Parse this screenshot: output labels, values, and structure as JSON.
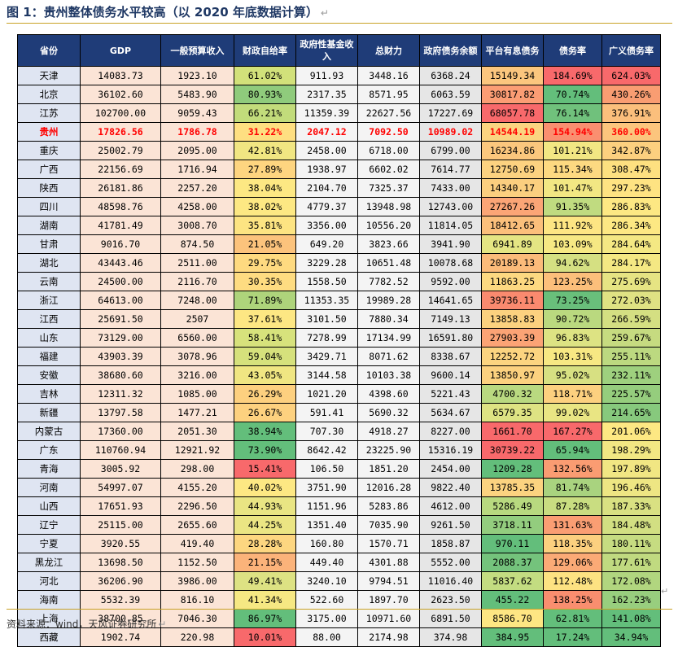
{
  "title": "图 1：贵州整体债务水平较高（以 2020 年底数据计算）",
  "title_mark": "↵",
  "source": "资料来源：wind，天风证券研究所",
  "source_mark": "↵",
  "end_mark": "↵",
  "headers": [
    "省份",
    "GDP",
    "一般预算收入",
    "财政自给率",
    "政府性基金收入",
    "总财力",
    "政府债务余额",
    "平台有息债务",
    "债务率",
    "广义债务率"
  ],
  "rows": [
    {
      "province": "天津",
      "gdp": "14083.73",
      "budget": "1923.10",
      "self": "61.02%",
      "fund": "911.93",
      "total": "3448.16",
      "gov_debt": "6368.24",
      "platform": "15149.34",
      "debt_ratio": "184.69%",
      "broad": "624.03%",
      "self_color": "#d2e17a",
      "platform_color": "#fbc67e",
      "debt_color": "#f8696b",
      "broad_color": "#f8696b"
    },
    {
      "province": "北京",
      "gdp": "36102.60",
      "budget": "5483.90",
      "self": "80.93%",
      "fund": "2317.35",
      "total": "8571.95",
      "gov_debt": "6063.59",
      "platform": "30817.82",
      "debt_ratio": "70.74%",
      "broad": "430.26%",
      "self_color": "#8fcb7c",
      "platform_color": "#fb9d74",
      "debt_color": "#63be7b",
      "broad_color": "#f99d72"
    },
    {
      "province": "江苏",
      "gdp": "102700.00",
      "budget": "9059.43",
      "self": "66.21%",
      "fund": "11359.39",
      "total": "22627.56",
      "gov_debt": "17227.69",
      "platform": "68057.78",
      "debt_ratio": "76.14%",
      "broad": "376.91%",
      "self_color": "#c2dc7b",
      "platform_color": "#f8696b",
      "debt_color": "#70c17c",
      "broad_color": "#fbbf7c"
    },
    {
      "province": "贵州",
      "gdp": "17826.56",
      "budget": "1786.78",
      "self": "31.22%",
      "fund": "2047.12",
      "total": "7092.50",
      "gov_debt": "10989.02",
      "platform": "14544.19",
      "debt_ratio": "154.94%",
      "broad": "360.00%",
      "self_color": "#fedf81",
      "platform_color": "#fbd480",
      "debt_color": "#fa8f70",
      "broad_color": "#fcc57d",
      "highlight": true
    },
    {
      "province": "重庆",
      "gdp": "25002.79",
      "budget": "2095.00",
      "self": "42.81%",
      "fund": "2458.00",
      "total": "6718.00",
      "gov_debt": "6799.00",
      "platform": "16234.86",
      "debt_ratio": "101.21%",
      "broad": "342.87%",
      "self_color": "#f1e682",
      "platform_color": "#fbc77d",
      "debt_color": "#f2e783",
      "broad_color": "#fcd07f"
    },
    {
      "province": "广西",
      "gdp": "22156.69",
      "budget": "1716.94",
      "self": "27.89%",
      "fund": "1938.97",
      "total": "6602.02",
      "gov_debt": "7614.77",
      "platform": "12750.69",
      "debt_ratio": "115.34%",
      "broad": "308.47%",
      "self_color": "#fed580",
      "platform_color": "#fcd280",
      "debt_color": "#fdd981",
      "broad_color": "#fde080"
    },
    {
      "province": "陕西",
      "gdp": "26181.86",
      "budget": "2257.20",
      "self": "38.04%",
      "fund": "2104.70",
      "total": "7325.37",
      "gov_debt": "7433.00",
      "platform": "14340.17",
      "debt_ratio": "101.47%",
      "broad": "297.23%",
      "self_color": "#fde883",
      "platform_color": "#fbcf7f",
      "debt_color": "#f2e783",
      "broad_color": "#fee382"
    },
    {
      "province": "四川",
      "gdp": "48598.76",
      "budget": "4258.00",
      "self": "38.02%",
      "fund": "4779.37",
      "total": "13948.98",
      "gov_debt": "12743.00",
      "platform": "27267.26",
      "debt_ratio": "91.35%",
      "broad": "286.83%",
      "self_color": "#fde883",
      "platform_color": "#fba576",
      "debt_color": "#c0db80",
      "broad_color": "#fde883"
    },
    {
      "province": "湖南",
      "gdp": "41781.49",
      "budget": "3008.70",
      "self": "35.81%",
      "fund": "3356.00",
      "total": "10556.20",
      "gov_debt": "11814.05",
      "platform": "18412.65",
      "debt_ratio": "111.92%",
      "broad": "286.34%",
      "self_color": "#fde482",
      "platform_color": "#fbbf7b",
      "debt_color": "#fde583",
      "broad_color": "#fde883"
    },
    {
      "province": "甘肃",
      "gdp": "9016.70",
      "budget": "874.50",
      "self": "21.05%",
      "fund": "649.20",
      "total": "3823.66",
      "gov_debt": "3941.90",
      "platform": "6941.89",
      "debt_ratio": "103.09%",
      "broad": "284.64%",
      "self_color": "#fcc37c",
      "platform_color": "#e4e583",
      "debt_color": "#f6e883",
      "broad_color": "#f4e883"
    },
    {
      "province": "湖北",
      "gdp": "43443.46",
      "budget": "2511.00",
      "self": "29.75%",
      "fund": "3229.28",
      "total": "10651.48",
      "gov_debt": "10078.68",
      "platform": "20189.13",
      "debt_ratio": "94.62%",
      "broad": "284.17%",
      "self_color": "#feda80",
      "platform_color": "#fbbb7a",
      "debt_color": "#d5e082",
      "broad_color": "#f4e883"
    },
    {
      "province": "云南",
      "gdp": "24500.00",
      "budget": "2116.70",
      "self": "30.35%",
      "fund": "1558.50",
      "total": "7782.52",
      "gov_debt": "9592.00",
      "platform": "11863.25",
      "debt_ratio": "123.25%",
      "broad": "275.69%",
      "self_color": "#fedc81",
      "platform_color": "#fdd981",
      "debt_color": "#fcbf7b",
      "broad_color": "#e6e483"
    },
    {
      "province": "浙江",
      "gdp": "64613.00",
      "budget": "7248.00",
      "self": "71.89%",
      "fund": "11353.35",
      "total": "19989.28",
      "gov_debt": "14641.65",
      "platform": "39736.11",
      "debt_ratio": "73.25%",
      "broad": "272.03%",
      "self_color": "#aed47b",
      "platform_color": "#fa8a6f",
      "debt_color": "#69bf7b",
      "broad_color": "#dfe283"
    },
    {
      "province": "江西",
      "gdp": "25691.50",
      "budget": "2507",
      "self": "37.61%",
      "fund": "3101.50",
      "total": "7880.34",
      "gov_debt": "7149.13",
      "platform": "13858.83",
      "debt_ratio": "90.72%",
      "broad": "266.59%",
      "self_color": "#fde783",
      "platform_color": "#fcd17f",
      "debt_color": "#bad97f",
      "broad_color": "#d4df82"
    },
    {
      "province": "山东",
      "gdp": "73129.00",
      "budget": "6560.00",
      "self": "58.41%",
      "fund": "7278.99",
      "total": "17134.99",
      "gov_debt": "16591.80",
      "platform": "27903.39",
      "debt_ratio": "96.83%",
      "broad": "259.67%",
      "self_color": "#d7e27c",
      "platform_color": "#fba375",
      "debt_color": "#dde383",
      "broad_color": "#c6db80"
    },
    {
      "province": "福建",
      "gdp": "43903.39",
      "budget": "3078.96",
      "self": "59.04%",
      "fund": "3429.71",
      "total": "8071.62",
      "gov_debt": "8338.67",
      "platform": "12252.72",
      "debt_ratio": "103.31%",
      "broad": "255.11%",
      "self_color": "#d6e17c",
      "platform_color": "#fcd480",
      "debt_color": "#f7e883",
      "broad_color": "#bcd980"
    },
    {
      "province": "安徽",
      "gdp": "38680.60",
      "budget": "3216.00",
      "self": "43.05%",
      "fund": "3144.58",
      "total": "10103.38",
      "gov_debt": "9600.14",
      "platform": "13850.97",
      "debt_ratio": "95.02%",
      "broad": "232.11%",
      "self_color": "#f0e682",
      "platform_color": "#fcd17f",
      "debt_color": "#d7e082",
      "broad_color": "#9ed07e"
    },
    {
      "province": "吉林",
      "gdp": "12311.32",
      "budget": "1085.00",
      "self": "26.29%",
      "fund": "1021.20",
      "total": "4398.60",
      "gov_debt": "5221.43",
      "platform": "4700.32",
      "debt_ratio": "118.71%",
      "broad": "225.57%",
      "self_color": "#fdd07f",
      "platform_color": "#b9d980",
      "debt_color": "#fcd07f",
      "broad_color": "#95cd7d"
    },
    {
      "province": "新疆",
      "gdp": "13797.58",
      "budget": "1477.21",
      "self": "26.67%",
      "fund": "591.41",
      "total": "5690.32",
      "gov_debt": "5634.67",
      "platform": "6579.35",
      "debt_ratio": "99.02%",
      "broad": "214.65%",
      "self_color": "#fdd17f",
      "platform_color": "#dee383",
      "debt_color": "#e9e583",
      "broad_color": "#87c97d"
    },
    {
      "province": "内蒙古",
      "gdp": "17360.00",
      "budget": "2051.30",
      "self": "38.94%",
      "fund": "707.30",
      "total": "4918.27",
      "gov_debt": "8227.00",
      "platform": "1661.70",
      "debt_ratio": "167.27%",
      "broad": "201.06%",
      "self_color": "#63be7b",
      "platform_color": "#f8696b",
      "debt_color": "#f8696b",
      "broad_color": "#fde883"
    },
    {
      "province": "广东",
      "gdp": "110760.94",
      "budget": "12921.92",
      "self": "73.90%",
      "fund": "8642.42",
      "total": "23225.90",
      "gov_debt": "15316.19",
      "platform": "30739.22",
      "debt_ratio": "65.94%",
      "broad": "198.29%",
      "self_color": "#63be7b",
      "platform_color": "#f8696b",
      "debt_color": "#63be7b",
      "broad_color": "#f2e783"
    },
    {
      "province": "青海",
      "gdp": "3005.92",
      "budget": "298.00",
      "self": "15.41%",
      "fund": "106.50",
      "total": "1851.20",
      "gov_debt": "2454.00",
      "platform": "1209.28",
      "debt_ratio": "132.56%",
      "broad": "197.89%",
      "self_color": "#f8696b",
      "platform_color": "#63be7b",
      "debt_color": "#fa9c72",
      "broad_color": "#f1e683"
    },
    {
      "province": "河南",
      "gdp": "54997.07",
      "budget": "4155.20",
      "self": "40.02%",
      "fund": "3751.90",
      "total": "12016.28",
      "gov_debt": "9822.40",
      "platform": "13785.35",
      "debt_ratio": "81.74%",
      "broad": "196.46%",
      "self_color": "#fde883",
      "platform_color": "#fcd380",
      "debt_color": "#a9d37f",
      "broad_color": "#eee683"
    },
    {
      "province": "山西",
      "gdp": "17651.93",
      "budget": "2296.50",
      "self": "44.93%",
      "fund": "1151.96",
      "total": "5283.86",
      "gov_debt": "4612.00",
      "platform": "5286.49",
      "debt_ratio": "87.28%",
      "broad": "187.33%",
      "self_color": "#e9e583",
      "platform_color": "#b8d97f",
      "debt_color": "#c9dd81",
      "broad_color": "#d9e182"
    },
    {
      "province": "辽宁",
      "gdp": "25115.00",
      "budget": "2655.60",
      "self": "44.25%",
      "fund": "1351.40",
      "total": "7035.90",
      "gov_debt": "9261.50",
      "platform": "3718.11",
      "debt_ratio": "131.63%",
      "broad": "184.48%",
      "self_color": "#ebe583",
      "platform_color": "#93cd7e",
      "debt_color": "#fa9e73",
      "broad_color": "#d2df82"
    },
    {
      "province": "宁夏",
      "gdp": "3920.55",
      "budget": "419.40",
      "self": "28.28%",
      "fund": "160.80",
      "total": "1570.71",
      "gov_debt": "1858.87",
      "platform": "970.11",
      "debt_ratio": "118.35%",
      "broad": "180.11%",
      "self_color": "#fdd680",
      "platform_color": "#63be7b",
      "debt_color": "#fcd07f",
      "broad_color": "#c6dc81"
    },
    {
      "province": "黑龙江",
      "gdp": "13698.50",
      "budget": "1152.50",
      "self": "21.15%",
      "fund": "449.40",
      "total": "4301.88",
      "gov_debt": "5552.00",
      "platform": "2088.37",
      "debt_ratio": "129.06%",
      "broad": "177.61%",
      "self_color": "#fbb37a",
      "platform_color": "#74c37c",
      "debt_color": "#fbaa76",
      "broad_color": "#c0da80"
    },
    {
      "province": "河北",
      "gdp": "36206.90",
      "budget": "3986.00",
      "self": "49.41%",
      "fund": "3240.10",
      "total": "9794.51",
      "gov_debt": "11016.40",
      "platform": "5837.62",
      "debt_ratio": "112.48%",
      "broad": "172.08%",
      "self_color": "#dde283",
      "platform_color": "#c3dc81",
      "debt_color": "#fde282",
      "broad_color": "#b1d67f"
    },
    {
      "province": "海南",
      "gdp": "5532.39",
      "budget": "816.10",
      "self": "41.34%",
      "fund": "522.60",
      "total": "1897.70",
      "gov_debt": "2623.50",
      "platform": "455.22",
      "debt_ratio": "138.25%",
      "broad": "162.23%",
      "self_color": "#f6e883",
      "platform_color": "#63be7b",
      "debt_color": "#f98e6f",
      "broad_color": "#98ce7e"
    },
    {
      "province": "上海",
      "gdp": "38700.85",
      "budget": "7046.30",
      "self": "86.97%",
      "fund": "3175.00",
      "total": "10971.60",
      "gov_debt": "6891.50",
      "platform": "8586.70",
      "debt_ratio": "62.81%",
      "broad": "141.08%",
      "self_color": "#63be7b",
      "platform_color": "#fee683",
      "debt_color": "#63be7b",
      "broad_color": "#63be7b"
    },
    {
      "province": "西藏",
      "gdp": "1902.74",
      "budget": "220.98",
      "self": "10.01%",
      "fund": "88.00",
      "total": "2174.98",
      "gov_debt": "374.98",
      "platform": "384.95",
      "debt_ratio": "17.24%",
      "broad": "34.94%",
      "self_color": "#f8696b",
      "platform_color": "#63be7b",
      "debt_color": "#63be7b",
      "broad_color": "#63be7b"
    }
  ]
}
